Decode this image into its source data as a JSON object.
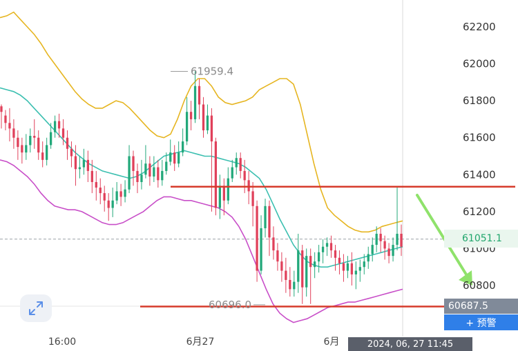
{
  "chart_data": {
    "type": "candlestick",
    "y_ticks": [
      "62200",
      "62000",
      "61800",
      "61600",
      "61400",
      "61200",
      "61000",
      "60800"
    ],
    "x_labels": [
      "16:00",
      "6月27",
      "6月"
    ],
    "ylim": [
      60530,
      62320
    ],
    "candles": [
      [
        61770,
        61740,
        61780,
        61650
      ],
      [
        61720,
        61680,
        61750,
        61640
      ],
      [
        61680,
        61650,
        61760,
        61580
      ],
      [
        61650,
        61600,
        61700,
        61540
      ],
      [
        61600,
        61550,
        61640,
        61480
      ],
      [
        61560,
        61520,
        61600,
        61460
      ],
      [
        61520,
        61560,
        61620,
        61480
      ],
      [
        61560,
        61610,
        61650,
        61520
      ],
      [
        61610,
        61600,
        61700,
        61540
      ],
      [
        61600,
        61520,
        61640,
        61480
      ],
      [
        61520,
        61480,
        61580,
        61440
      ],
      [
        61480,
        61560,
        61600,
        61450
      ],
      [
        61560,
        61630,
        61680,
        61540
      ],
      [
        61630,
        61690,
        61720,
        61600
      ],
      [
        61690,
        61650,
        61730,
        61600
      ],
      [
        61650,
        61600,
        61700,
        61560
      ],
      [
        61600,
        61540,
        61640,
        61480
      ],
      [
        61540,
        61500,
        61580,
        61440
      ],
      [
        61500,
        61430,
        61560,
        61340
      ],
      [
        61430,
        61440,
        61500,
        61380
      ],
      [
        61440,
        61480,
        61540,
        61400
      ],
      [
        61480,
        61420,
        61530,
        61360
      ],
      [
        61420,
        61360,
        61480,
        61300
      ],
      [
        61360,
        61330,
        61420,
        61260
      ],
      [
        61330,
        61300,
        61380,
        61240
      ],
      [
        61300,
        61260,
        61340,
        61200
      ],
      [
        61260,
        61220,
        61300,
        61150
      ],
      [
        61220,
        61260,
        61330,
        61170
      ],
      [
        61260,
        61310,
        61360,
        61240
      ],
      [
        61310,
        61280,
        61350,
        61230
      ],
      [
        61280,
        61320,
        61370,
        61250
      ],
      [
        61320,
        61500,
        61560,
        61300
      ],
      [
        61500,
        61420,
        61530,
        61340
      ],
      [
        61420,
        61360,
        61460,
        61300
      ],
      [
        61360,
        61400,
        61480,
        61320
      ],
      [
        61400,
        61460,
        61560,
        61380
      ],
      [
        61460,
        61390,
        61500,
        61340
      ],
      [
        61390,
        61440,
        61500,
        61360
      ],
      [
        61440,
        61370,
        61480,
        61330
      ],
      [
        61370,
        61420,
        61480,
        61340
      ],
      [
        61420,
        61470,
        61520,
        61400
      ],
      [
        61470,
        61520,
        61590,
        61450
      ],
      [
        61520,
        61460,
        61560,
        61420
      ],
      [
        61460,
        61520,
        61580,
        61440
      ],
      [
        61520,
        61580,
        61650,
        61500
      ],
      [
        61580,
        61740,
        61820,
        61560
      ],
      [
        61740,
        61700,
        61800,
        61640
      ],
      [
        61700,
        61880,
        61960,
        61680
      ],
      [
        61880,
        61780,
        61920,
        61700
      ],
      [
        61780,
        61640,
        61820,
        61600
      ],
      [
        61640,
        61720,
        61780,
        61620
      ],
      [
        61720,
        61580,
        61760,
        61200
      ],
      [
        61580,
        61220,
        61600,
        61180
      ],
      [
        61220,
        61340,
        61400,
        61160
      ],
      [
        61340,
        61260,
        61380,
        61180
      ],
      [
        61260,
        61380,
        61440,
        61240
      ],
      [
        61380,
        61440,
        61480,
        61360
      ],
      [
        61440,
        61490,
        61520,
        61400
      ],
      [
        61490,
        61420,
        61520,
        61380
      ],
      [
        61420,
        61370,
        61480,
        61300
      ],
      [
        61370,
        61310,
        61420,
        61240
      ],
      [
        61310,
        61230,
        61360,
        61120
      ],
      [
        61230,
        60880,
        61260,
        60820
      ],
      [
        60880,
        61110,
        61180,
        60860
      ],
      [
        61110,
        61230,
        61270,
        61060
      ],
      [
        61230,
        61060,
        61260,
        60960
      ],
      [
        61060,
        60990,
        61120,
        60940
      ],
      [
        60990,
        60930,
        61030,
        60880
      ],
      [
        60930,
        60880,
        60980,
        60820
      ],
      [
        60880,
        60830,
        60950,
        60760
      ],
      [
        60830,
        60780,
        60900,
        60740
      ],
      [
        60780,
        60820,
        60880,
        60740
      ],
      [
        60820,
        60990,
        61080,
        60760
      ],
      [
        60990,
        60790,
        61020,
        60700
      ],
      [
        60790,
        60960,
        61000,
        60740
      ],
      [
        60960,
        60900,
        61000,
        60700
      ],
      [
        60900,
        60930,
        60980,
        60840
      ],
      [
        60930,
        60980,
        61020,
        60870
      ],
      [
        60980,
        61010,
        61050,
        60920
      ],
      [
        61010,
        61030,
        61060,
        60960
      ],
      [
        61030,
        60990,
        61070,
        60950
      ],
      [
        60990,
        60950,
        61020,
        60880
      ],
      [
        60950,
        60920,
        60990,
        60860
      ],
      [
        60920,
        60880,
        60970,
        60820
      ],
      [
        60880,
        60920,
        60960,
        60840
      ],
      [
        60920,
        60860,
        60980,
        60800
      ],
      [
        60860,
        60880,
        60930,
        60780
      ],
      [
        60880,
        60900,
        60940,
        60820
      ],
      [
        60900,
        60930,
        60970,
        60860
      ],
      [
        60930,
        60970,
        61010,
        60890
      ],
      [
        60970,
        61020,
        61060,
        60930
      ],
      [
        61020,
        61080,
        61120,
        60980
      ],
      [
        61080,
        61040,
        61110,
        60980
      ],
      [
        61040,
        61000,
        61070,
        60940
      ],
      [
        61000,
        60960,
        61030,
        60920
      ],
      [
        60960,
        61020,
        61060,
        60930
      ],
      [
        61020,
        61080,
        61330,
        60990
      ],
      [
        61080,
        61010,
        61130,
        60960
      ]
    ],
    "boll_upper": [
      62250,
      62260,
      62280,
      62240,
      62200,
      62160,
      62110,
      62050,
      62000,
      61950,
      61900,
      61850,
      61810,
      61780,
      61760,
      61760,
      61780,
      61800,
      61790,
      61760,
      61720,
      61680,
      61640,
      61610,
      61600,
      61620,
      61700,
      61800,
      61880,
      61920,
      61920,
      61880,
      61820,
      61790,
      61780,
      61790,
      61800,
      61820,
      61860,
      61880,
      61900,
      61920,
      61920,
      61890,
      61780,
      61620,
      61460,
      61320,
      61220,
      61180,
      61150,
      61120,
      61100,
      61090,
      61090,
      61100,
      61120,
      61130,
      61140,
      61150
    ],
    "boll_mid": [
      61870,
      61860,
      61850,
      61830,
      61800,
      61760,
      61720,
      61680,
      61640,
      61600,
      61560,
      61520,
      61490,
      61460,
      61440,
      61420,
      61410,
      61400,
      61390,
      61380,
      61390,
      61410,
      61440,
      61470,
      61500,
      61510,
      61520,
      61530,
      61520,
      61510,
      61500,
      61500,
      61490,
      61480,
      61470,
      61460,
      61440,
      61410,
      61380,
      61320,
      61240,
      61160,
      61090,
      61020,
      60970,
      60930,
      60910,
      60900,
      60900,
      60910,
      60920,
      60930,
      60940,
      60950,
      60960,
      60970,
      60980,
      60990,
      61000,
      61010
    ],
    "boll_lower": [
      61480,
      61470,
      61450,
      61420,
      61390,
      61350,
      61300,
      61260,
      61230,
      61220,
      61210,
      61210,
      61200,
      61180,
      61160,
      61140,
      61130,
      61130,
      61140,
      61160,
      61180,
      61200,
      61230,
      61260,
      61280,
      61280,
      61270,
      61260,
      61260,
      61250,
      61240,
      61230,
      61220,
      61200,
      61170,
      61120,
      61050,
      60960,
      60870,
      60780,
      60700,
      60650,
      60620,
      60600,
      60610,
      60620,
      60640,
      60660,
      60680,
      60690,
      60700,
      60710,
      60710,
      60720,
      60730,
      60740,
      60750,
      60760,
      60770,
      60780
    ],
    "high_label": "61959.4",
    "low_label": "60696.0",
    "current_price": "61051.1",
    "low_marker_price": "60687.5",
    "current_price_value": 61051.1,
    "high_value": 61959.4,
    "low_value": 60696.0,
    "resistance_level": 61335,
    "support_level": 60690
  },
  "ui": {
    "alert_button_label": "+ 预警",
    "time_badge": "2024, 06, 27 11:45",
    "colors": {
      "up": "#22a87a",
      "down": "#e0405a",
      "boll_upper": "#e6b520",
      "boll_mid": "#3bbfb0",
      "boll_lower": "#c84ec8",
      "resistance_line": "#d63a2a",
      "arrow": "#8fe26b"
    },
    "icons": {
      "expand": "expand-diagonal-icon",
      "arrow": "down-right-arrow-icon"
    }
  }
}
